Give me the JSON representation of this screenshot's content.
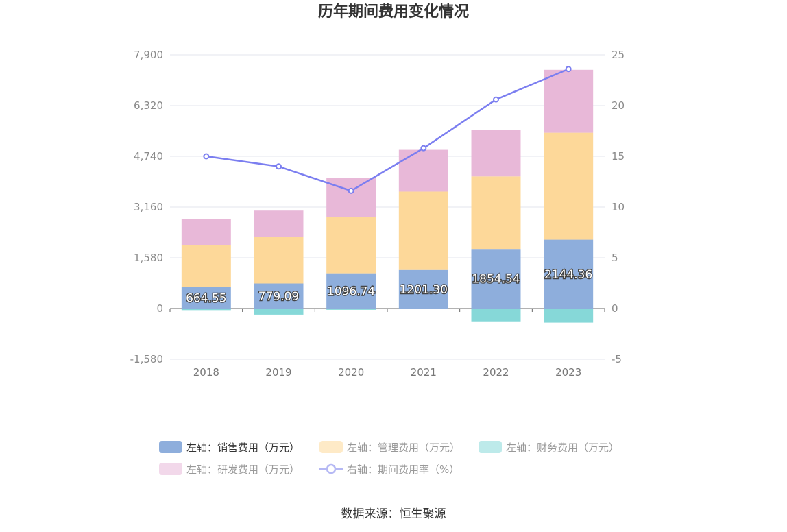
{
  "title": "历年期间费用变化情况",
  "source": "数据来源：恒生聚源",
  "colors": {
    "sales": "#8eaedc",
    "admin": "#fdd899",
    "finance": "#86d8d8",
    "rd": "#e8b8d8",
    "rate": "#7b7ef0",
    "axis": "#666666",
    "grid": "#e3e6ee"
  },
  "legend": [
    {
      "key": "sales",
      "label": "左轴：销售费用（万元）",
      "active": true
    },
    {
      "key": "admin",
      "label": "左轴：管理费用（万元）",
      "active": false
    },
    {
      "key": "finance",
      "label": "左轴：财务费用（万元）",
      "active": false
    },
    {
      "key": "rd",
      "label": "左轴：研发费用（万元）",
      "active": false
    },
    {
      "key": "rate",
      "label": "右轴：期间费用率（%）",
      "active": false
    }
  ],
  "chart_data": {
    "type": "bar",
    "stacked": true,
    "categories": [
      "2018",
      "2019",
      "2020",
      "2021",
      "2022",
      "2023"
    ],
    "left_axis": {
      "min": -1580,
      "max": 7900,
      "ticks": [
        -1580,
        0,
        1580,
        3160,
        4740,
        6320,
        7900
      ],
      "tick_labels": [
        "-1,580",
        "0",
        "1,580",
        "3,160",
        "4,740",
        "6,320",
        "7,900"
      ]
    },
    "right_axis": {
      "min": -5,
      "max": 25,
      "ticks": [
        -5,
        0,
        5,
        10,
        15,
        20,
        25
      ],
      "tick_labels": [
        "-5",
        "0",
        "5",
        "10",
        "15",
        "20",
        "25"
      ]
    },
    "series": [
      {
        "key": "sales",
        "name": "左轴：销售费用（万元）",
        "axis": "left",
        "values": [
          664.55,
          779.09,
          1096.74,
          1201.3,
          1854.54,
          2144.36
        ],
        "labels": [
          "664.55",
          "779.09",
          "1096.74",
          "1201.30",
          "1854.54",
          "2144.36"
        ]
      },
      {
        "key": "admin",
        "name": "左轴：管理费用（万元）",
        "axis": "left",
        "values": [
          1320,
          1460,
          1760,
          2440,
          2260,
          3330
        ]
      },
      {
        "key": "finance",
        "name": "左轴：财务费用（万元）",
        "axis": "left",
        "values": [
          -50,
          -190,
          -40,
          -20,
          -400,
          -440
        ]
      },
      {
        "key": "rd",
        "name": "左轴：研发费用（万元）",
        "axis": "left",
        "values": [
          800,
          810,
          1210,
          1300,
          1440,
          1960
        ]
      },
      {
        "key": "rate",
        "name": "右轴：期间费用率（%）",
        "axis": "right",
        "type": "line",
        "values": [
          15.0,
          14.0,
          11.6,
          15.8,
          20.6,
          23.6
        ]
      }
    ],
    "grid": true,
    "legend_position": "bottom"
  }
}
